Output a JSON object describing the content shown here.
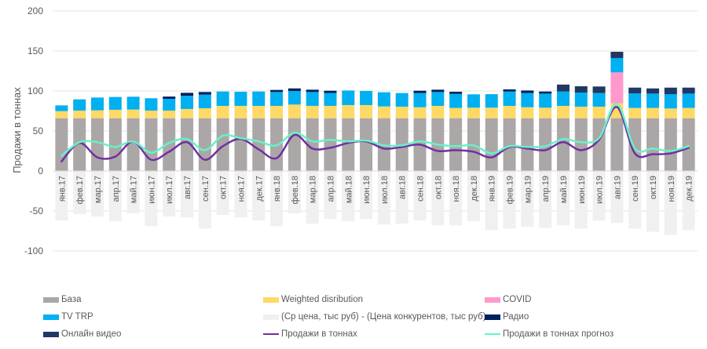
{
  "chart_data": {
    "type": "bar",
    "subtype": "stacked bar with line overlays",
    "title": "",
    "xlabel": "",
    "ylabel": "Продажи в тоннах",
    "ylim": [
      -100,
      200
    ],
    "yticks": [
      200,
      150,
      100,
      50,
      0,
      -50,
      -100
    ],
    "grid": true,
    "legend_position": "bottom",
    "categories": [
      "янв.17",
      "фев.17",
      "мар.17",
      "апр.17",
      "май.17",
      "июн.17",
      "июл.17",
      "авг.17",
      "сен.17",
      "окт.17",
      "ноя.17",
      "дек.17",
      "янв.18",
      "фев.18",
      "мар.18",
      "апр.18",
      "май.18",
      "июн.18",
      "июл.18",
      "авг.18",
      "сен.18",
      "окт.18",
      "ноя.18",
      "дек.18",
      "янв.19",
      "фев.19",
      "мар.19",
      "апр.19",
      "май.19",
      "июн.19",
      "июл.19",
      "авг.19",
      "сен.19",
      "окт.19",
      "ноя.19",
      "дек.19"
    ],
    "stacked_series": [
      {
        "name": "База",
        "color": "#ABA7A7",
        "values": [
          66,
          66,
          66,
          66,
          66,
          66,
          66,
          66,
          66,
          66,
          66,
          66,
          66,
          66,
          66,
          66,
          66,
          66,
          66,
          66,
          66,
          66,
          66,
          66,
          66,
          66,
          66,
          66,
          66,
          66,
          66,
          66,
          66,
          66,
          66,
          66
        ]
      },
      {
        "name": "Weighted disribution",
        "color": "#FFD966",
        "values": [
          8.8,
          9.5,
          9.8,
          10.5,
          10.8,
          9.5,
          9.5,
          11.5,
          12.4,
          15.4,
          15.4,
          15.4,
          15.4,
          17,
          15.4,
          15.4,
          16.4,
          16.4,
          14.7,
          14.4,
          13.7,
          15.4,
          12.8,
          13.1,
          13.1,
          15.4,
          13.7,
          13.1,
          15.4,
          14.4,
          14.4,
          18.6,
          12.8,
          12.8,
          12.1,
          12.8
        ]
      },
      {
        "name": "COVID",
        "color": "#FF99CC",
        "values": [
          0,
          0,
          0,
          0,
          0,
          0,
          0,
          0,
          0,
          0,
          0,
          0,
          0,
          0,
          0,
          0,
          0,
          0,
          0,
          0,
          0,
          0,
          0,
          0,
          0,
          0,
          0,
          0,
          0,
          0,
          0,
          38.6,
          0,
          0,
          0,
          0
        ]
      },
      {
        "name": "TV TRP",
        "color": "#00B0F0",
        "values": [
          7.2,
          14,
          16,
          16,
          16,
          15.4,
          14.7,
          16.5,
          17,
          17.9,
          17.6,
          17.9,
          17.3,
          17,
          17.3,
          16,
          18.2,
          17.6,
          17.7,
          17,
          17.7,
          17.3,
          17.6,
          16.7,
          16.9,
          17.9,
          17.7,
          17.6,
          17.9,
          17.6,
          17,
          18,
          18.2,
          17.9,
          17.9,
          17.9
        ]
      },
      {
        "name": "Радио",
        "color": "#002060",
        "values": [
          0,
          0,
          0,
          0,
          0,
          0,
          2.8,
          3.7,
          3.3,
          0,
          0,
          0,
          2.6,
          3.2,
          2.9,
          2.9,
          0,
          0,
          0,
          0,
          2.9,
          2.9,
          2.6,
          0,
          0,
          2.7,
          3.2,
          2.6,
          0,
          0,
          0,
          0,
          0,
          0,
          0,
          0
        ]
      },
      {
        "name": "Онлайн видео",
        "color": "#203864",
        "values": [
          0,
          0,
          0,
          0,
          0,
          0,
          0,
          0,
          0,
          0,
          0,
          0,
          0,
          0,
          0,
          0,
          0,
          0,
          0,
          0,
          0,
          0,
          0,
          0,
          0,
          0,
          0,
          0,
          8.7,
          7.9,
          8.2,
          7.8,
          7.2,
          6.5,
          8.2,
          7.5
        ]
      }
    ],
    "negative_series": {
      "name": "(Ср цена, тыс руб) - (Цена конкурентов, тыс руб)",
      "color": "#F0F0F0",
      "values": [
        -62,
        -54,
        -57,
        -63,
        -53,
        -69,
        -57,
        -58,
        -72,
        -55,
        -58,
        -62,
        -69,
        -53,
        -66,
        -60,
        -63,
        -60,
        -67,
        -66,
        -62,
        -68,
        -68,
        -63,
        -74,
        -72,
        -70,
        -71,
        -68,
        -72,
        -62,
        -65,
        -72,
        -76,
        -80,
        -74
      ]
    },
    "line_series": [
      {
        "name": "Продажи в тоннах",
        "color": "#7030A0",
        "values": [
          12,
          35,
          17,
          18,
          37,
          14,
          24,
          36,
          14,
          31,
          40,
          27,
          16,
          45,
          28,
          29,
          35,
          37,
          28,
          30,
          33,
          25,
          26,
          24,
          17,
          30,
          28,
          26,
          36,
          26,
          39,
          80,
          22,
          21,
          22,
          29
        ]
      },
      {
        "name": "Продажи в тоннах прогноз",
        "color": "#66F2C8",
        "values": [
          19,
          36,
          36,
          30,
          37,
          23,
          35,
          40,
          26,
          44,
          41,
          37,
          32,
          48,
          37,
          39,
          37,
          38,
          32,
          32,
          37,
          33,
          31,
          32,
          22,
          31,
          30,
          31,
          40,
          36,
          41,
          84,
          28,
          28,
          25,
          31
        ]
      }
    ]
  },
  "legend": [
    {
      "label": "База",
      "color": "#ABA7A7",
      "kind": "box"
    },
    {
      "label": "Weighted disribution",
      "color": "#FFD966",
      "kind": "box"
    },
    {
      "label": "COVID",
      "color": "#FF99CC",
      "kind": "box"
    },
    {
      "label": "TV TRP",
      "color": "#00B0F0",
      "kind": "box"
    },
    {
      "label": "(Ср цена, тыс руб) - (Цена конкурентов, тыс руб)",
      "color": "#F0F0F0",
      "kind": "box"
    },
    {
      "label": "Радио",
      "color": "#002060",
      "kind": "box"
    },
    {
      "label": "Онлайн видео",
      "color": "#203864",
      "kind": "box"
    },
    {
      "label": "Продажи в тоннах",
      "color": "#7030A0",
      "kind": "line"
    },
    {
      "label": "Продажи в тоннах прогноз",
      "color": "#66F2C8",
      "kind": "line"
    }
  ]
}
